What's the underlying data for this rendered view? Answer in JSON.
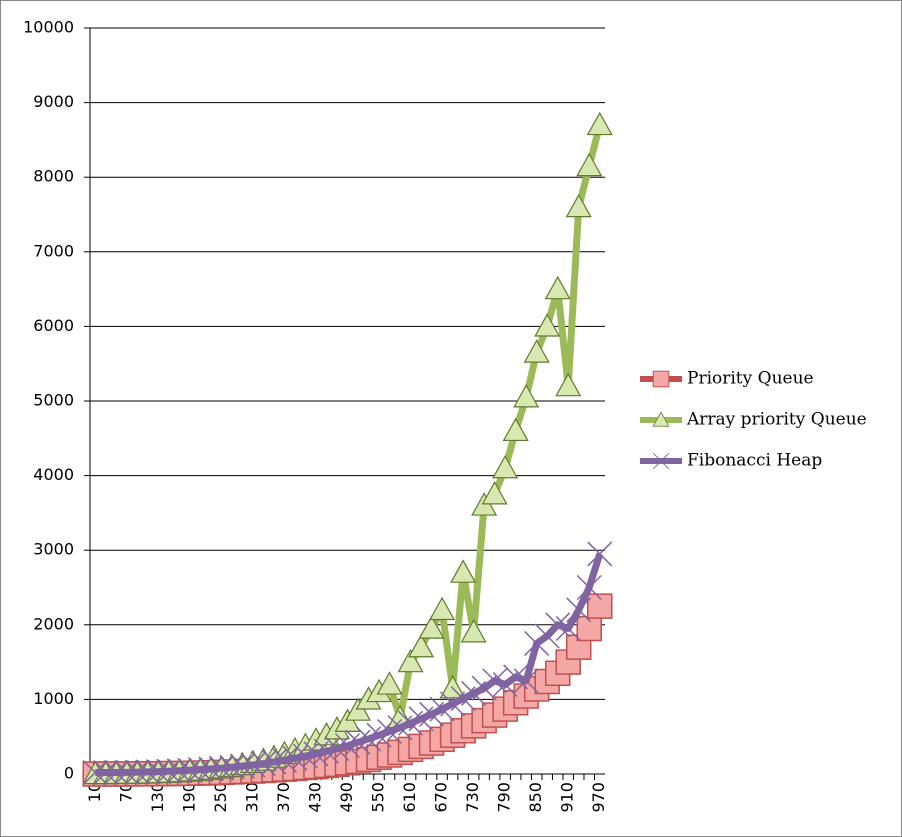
{
  "chart_data": {
    "type": "line",
    "categories": [
      "10",
      null,
      null,
      "70",
      null,
      null,
      "130",
      null,
      null,
      "190",
      null,
      null,
      "250",
      null,
      null,
      "310",
      null,
      null,
      "370",
      null,
      null,
      "430",
      null,
      null,
      "490",
      null,
      null,
      "550",
      null,
      null,
      "610",
      null,
      null,
      "670",
      null,
      null,
      "730",
      null,
      null,
      "790",
      null,
      null,
      "850",
      null,
      null,
      "910",
      null,
      null,
      "970"
    ],
    "series": [
      {
        "name": "Priority Queue",
        "color": "#c0504d",
        "marker": "square",
        "values": [
          0,
          0,
          0,
          1,
          2,
          3,
          4,
          6,
          8,
          10,
          13,
          17,
          22,
          28,
          34,
          40,
          48,
          56,
          65,
          75,
          88,
          100,
          115,
          130,
          150,
          170,
          195,
          225,
          255,
          290,
          330,
          370,
          415,
          465,
          520,
          580,
          645,
          715,
          790,
          870,
          955,
          1045,
          1140,
          1240,
          1350,
          1500,
          1700,
          1950,
          2250
        ]
      },
      {
        "name": "Array priority Queue",
        "color": "#9bbb59",
        "marker": "triangle",
        "values": [
          0,
          0,
          1,
          3,
          5,
          8,
          12,
          18,
          25,
          35,
          45,
          58,
          75,
          95,
          120,
          150,
          180,
          220,
          270,
          320,
          380,
          450,
          520,
          600,
          700,
          850,
          1000,
          1100,
          1200,
          750,
          1500,
          1700,
          1950,
          2200,
          1150,
          2700,
          1900,
          3600,
          3750,
          4100,
          4600,
          5050,
          5650,
          6000,
          6500,
          5200,
          7600,
          8150,
          8700
        ]
      },
      {
        "name": "Fibonacci Heap",
        "color": "#8064a2",
        "marker": "x",
        "values": [
          20,
          20,
          20,
          22,
          25,
          28,
          32,
          37,
          43,
          50,
          58,
          67,
          78,
          90,
          105,
          120,
          140,
          160,
          185,
          210,
          240,
          270,
          305,
          340,
          380,
          425,
          470,
          520,
          570,
          620,
          680,
          740,
          800,
          870,
          940,
          1010,
          1080,
          1150,
          1250,
          1200,
          1300,
          1250,
          1750,
          1850,
          2000,
          1950,
          2200,
          2500,
          2950
        ]
      }
    ],
    "ylim": [
      0,
      10000
    ],
    "yticks": [
      0,
      1000,
      2000,
      3000,
      4000,
      5000,
      6000,
      7000,
      8000,
      9000,
      10000
    ],
    "grid": true,
    "legend": "right"
  }
}
